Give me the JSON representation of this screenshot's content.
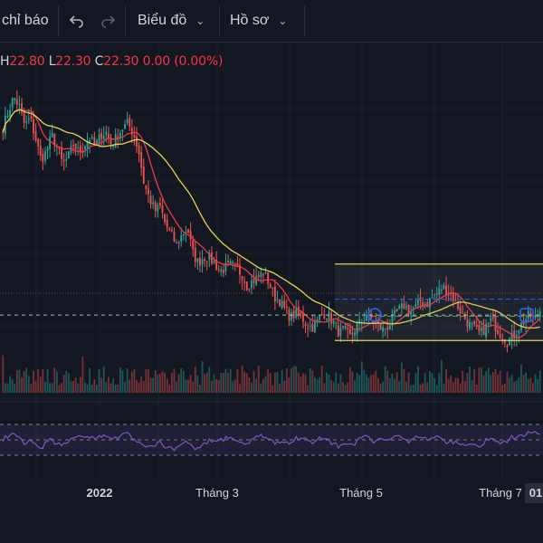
{
  "toolbar": {
    "indicators_label": "chỉ báo",
    "chart_menu_label": "Biểu đồ",
    "profile_menu_label": "Hồ sơ",
    "undo_icon": "undo-icon",
    "redo_icon": "redo-icon"
  },
  "ohlc": {
    "h_key": "H",
    "h_val": "22.80",
    "l_key": "L",
    "l_val": "22.30",
    "c_key": "C",
    "c_val": "22.30",
    "change": "0.00 (0.00%)"
  },
  "colors": {
    "up": "#26a69a",
    "down": "#ef5350",
    "ma_fast": "#f23645",
    "ma_slow": "#e6d44f",
    "rsi": "#7e57c2",
    "channel": "#e6d44f",
    "dashed_blue": "#2962ff",
    "dashed_green": "#4caf50"
  },
  "chart_data": {
    "type": "candlestick",
    "x_labels": [
      "2022",
      "Tháng 3",
      "Tháng 5",
      "Tháng 7",
      "01"
    ],
    "close_path": [
      33.5,
      34.8,
      36.0,
      35.2,
      33.6,
      34.2,
      32.6,
      30.8,
      31.5,
      32.8,
      31.9,
      30.4,
      31.0,
      32.1,
      31.4,
      32.0,
      32.6,
      31.9,
      32.8,
      33.1,
      32.0,
      32.7,
      33.4,
      33.8,
      33.0,
      31.6,
      28.8,
      27.6,
      26.6,
      26.9,
      25.4,
      24.6,
      23.8,
      24.6,
      25.2,
      23.1,
      22.3,
      22.8,
      22.7,
      22.3,
      21.6,
      21.9,
      22.1,
      21.8,
      21.4,
      20.4,
      20.8,
      21.1,
      21.5,
      20.7,
      19.5,
      19.2,
      18.4,
      17.8,
      18.1,
      17.9,
      17.2,
      17.0,
      17.5,
      18.2,
      18.0,
      17.3,
      16.5,
      16.7,
      16.2,
      16.9,
      17.4,
      18.1,
      17.6,
      17.2,
      16.8,
      17.1,
      17.8,
      18.4,
      18.8,
      18.3,
      18.6,
      19.2,
      18.9,
      19.4,
      19.8,
      20.3,
      20.0,
      19.4,
      18.6,
      17.8,
      17.2,
      16.8,
      16.4,
      17.0,
      17.6,
      16.9,
      16.3,
      15.8,
      16.2,
      16.9,
      17.5,
      18.0,
      17.6,
      18.4
    ],
    "price_range": [
      14.5,
      38.0
    ],
    "rsi_range": [
      10,
      90
    ],
    "rsi_levels": [
      70,
      50,
      30
    ],
    "channel": {
      "top": 22.2,
      "bottom": 15.9,
      "start_label": "Tháng 5"
    },
    "dashed_levels": {
      "blue": 19.3,
      "white": 18.0,
      "red": 19.8,
      "green": 17.9
    },
    "series": [
      {
        "name": "Giá",
        "style": "candles"
      },
      {
        "name": "MA nhanh",
        "style": "line"
      },
      {
        "name": "MA chậm",
        "style": "line"
      },
      {
        "name": "Khối lượng",
        "style": "histogram"
      },
      {
        "name": "RSI",
        "style": "line"
      }
    ]
  }
}
